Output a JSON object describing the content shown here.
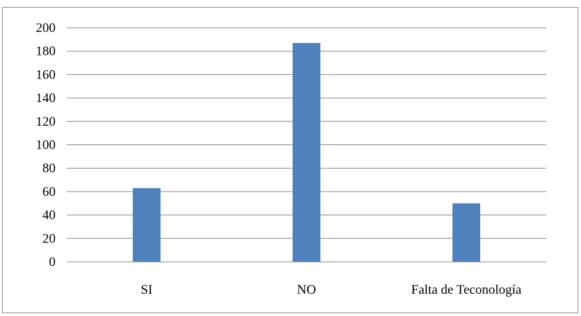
{
  "chart_data": {
    "type": "bar",
    "categories": [
      "SI",
      "NO",
      "Falta de Teconología"
    ],
    "values": [
      63,
      187,
      50
    ],
    "title": "",
    "xlabel": "",
    "ylabel": "",
    "ylim": [
      0,
      200
    ],
    "yticks": [
      0,
      20,
      40,
      60,
      80,
      100,
      120,
      140,
      160,
      180,
      200
    ],
    "grid": true,
    "legend": "none",
    "bar_color": "#4f81bd",
    "grid_color": "#868686"
  }
}
